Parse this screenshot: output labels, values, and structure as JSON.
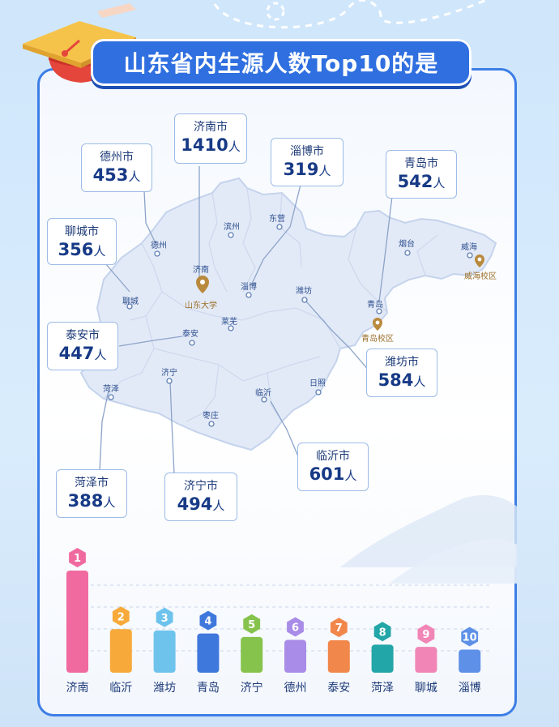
{
  "title": "山东省内生源人数Top10的是",
  "callouts": [
    {
      "name": "济南市",
      "value": "1410",
      "unit": "人"
    },
    {
      "name": "淄博市",
      "value": "319",
      "unit": "人"
    },
    {
      "name": "青岛市",
      "value": "542",
      "unit": "人"
    },
    {
      "name": "德州市",
      "value": "453",
      "unit": "人"
    },
    {
      "name": "聊城市",
      "value": "356",
      "unit": "人"
    },
    {
      "name": "泰安市",
      "value": "447",
      "unit": "人"
    },
    {
      "name": "潍坊市",
      "value": "584",
      "unit": "人"
    },
    {
      "name": "菏泽市",
      "value": "388",
      "unit": "人"
    },
    {
      "name": "济宁市",
      "value": "494",
      "unit": "人"
    },
    {
      "name": "临沂市",
      "value": "601",
      "unit": "人"
    }
  ],
  "map_labels": {
    "jinan": "济南",
    "binzhou": "滨州",
    "dongying": "东营",
    "dezhou": "德州",
    "zibo": "淄博",
    "yantai": "烟台",
    "weihai": "威海",
    "weihai_campus": "威海校区",
    "liaocheng": "聊城",
    "shandong_univ": "山东大学",
    "laiwu": "莱芜",
    "weifang": "潍坊",
    "qingdao": "青岛",
    "qingdao_campus": "青岛校区",
    "taian": "泰安",
    "jining": "济宁",
    "heze": "菏泽",
    "linyi": "临沂",
    "rizhao": "日照",
    "zaozhuang": "枣庄"
  },
  "colors": {
    "accent": "#2f6fe0",
    "map_fill": "#e3eaf7",
    "pin": "#b98a3e"
  },
  "chart_data": {
    "type": "bar",
    "categories": [
      "济南",
      "临沂",
      "潍坊",
      "青岛",
      "济宁",
      "德州",
      "泰安",
      "菏泽",
      "聊城",
      "淄博"
    ],
    "ranks": [
      "1",
      "2",
      "3",
      "4",
      "5",
      "6",
      "7",
      "8",
      "9",
      "10"
    ],
    "values": [
      1410,
      601,
      584,
      542,
      494,
      453,
      447,
      388,
      356,
      319
    ],
    "colors": [
      "#f06aa0",
      "#f7a93a",
      "#6ec3ec",
      "#3f78dc",
      "#86c34d",
      "#a98be8",
      "#f2874b",
      "#23a6a8",
      "#f185b6",
      "#5e90e8"
    ],
    "grid": true,
    "title": "",
    "xlabel": "",
    "ylabel": ""
  }
}
